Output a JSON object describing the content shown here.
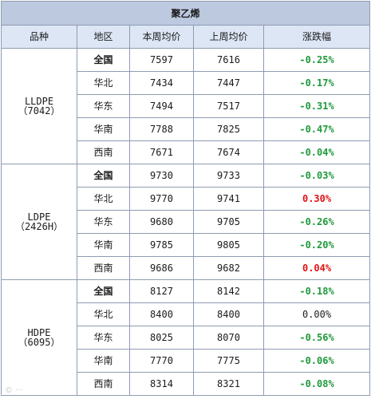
{
  "title": "聚乙烯",
  "headers": [
    "品种",
    "地区",
    "本周均价",
    "上周均价",
    "涨跌幅"
  ],
  "colors": {
    "title_bg": "#bcc9df",
    "header_bg": "#dde6f5",
    "border": "#8e9bb0",
    "down": "#1f9a3c",
    "up": "#e01414"
  },
  "groups": [
    {
      "product_line1": "LLDPE",
      "product_line2": "（7042）",
      "rows": [
        {
          "region": "全国",
          "this_week": "7597",
          "last_week": "7616",
          "change": "-0.25%",
          "trend": "down",
          "bold": true
        },
        {
          "region": "华北",
          "this_week": "7434",
          "last_week": "7447",
          "change": "-0.17%",
          "trend": "down",
          "bold": false
        },
        {
          "region": "华东",
          "this_week": "7494",
          "last_week": "7517",
          "change": "-0.31%",
          "trend": "down",
          "bold": false
        },
        {
          "region": "华南",
          "this_week": "7788",
          "last_week": "7825",
          "change": "-0.47%",
          "trend": "down",
          "bold": false
        },
        {
          "region": "西南",
          "this_week": "7671",
          "last_week": "7674",
          "change": "-0.04%",
          "trend": "down",
          "bold": false
        }
      ]
    },
    {
      "product_line1": "LDPE",
      "product_line2": "（2426H）",
      "rows": [
        {
          "region": "全国",
          "this_week": "9730",
          "last_week": "9733",
          "change": "-0.03%",
          "trend": "down",
          "bold": true
        },
        {
          "region": "华北",
          "this_week": "9770",
          "last_week": "9741",
          "change": "0.30%",
          "trend": "up",
          "bold": false
        },
        {
          "region": "华东",
          "this_week": "9680",
          "last_week": "9705",
          "change": "-0.26%",
          "trend": "down",
          "bold": false
        },
        {
          "region": "华南",
          "this_week": "9785",
          "last_week": "9805",
          "change": "-0.20%",
          "trend": "down",
          "bold": false
        },
        {
          "region": "西南",
          "this_week": "9686",
          "last_week": "9682",
          "change": "0.04%",
          "trend": "up",
          "bold": false
        }
      ]
    },
    {
      "product_line1": "HDPE",
      "product_line2": "（6095）",
      "rows": [
        {
          "region": "全国",
          "this_week": "8127",
          "last_week": "8142",
          "change": "-0.18%",
          "trend": "down",
          "bold": true
        },
        {
          "region": "华北",
          "this_week": "8400",
          "last_week": "8400",
          "change": "0.00%",
          "trend": "flat",
          "bold": false
        },
        {
          "region": "华东",
          "this_week": "8025",
          "last_week": "8070",
          "change": "-0.56%",
          "trend": "down",
          "bold": false
        },
        {
          "region": "华南",
          "this_week": "7770",
          "last_week": "7775",
          "change": "-0.06%",
          "trend": "down",
          "bold": false
        },
        {
          "region": "西南",
          "this_week": "8314",
          "last_week": "8321",
          "change": "-0.08%",
          "trend": "down",
          "bold": false
        }
      ]
    }
  ]
}
